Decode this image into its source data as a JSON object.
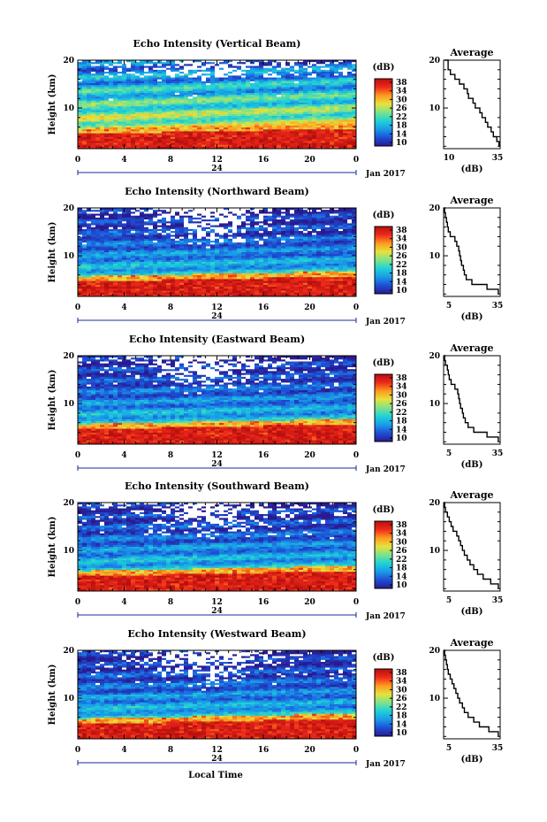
{
  "chart_data": {
    "type": "heatmap",
    "x_ticks": [
      "0",
      "4",
      "8",
      "12",
      "16",
      "20",
      "0"
    ],
    "date_tick": "24",
    "date_label": "Jan 2017",
    "xlabel": "Local Time",
    "ylabel": "Height (km)",
    "y_ticks": [
      "20",
      "10"
    ],
    "ylim_km": [
      1.5,
      20
    ],
    "colorbar": {
      "unit": "(dB)",
      "ticks": [
        "38",
        "34",
        "30",
        "26",
        "22",
        "18",
        "14",
        "10"
      ],
      "range_db": [
        10,
        38
      ],
      "colormap": [
        "#2a1a8f",
        "#1d4fd6",
        "#1a9be8",
        "#1ed3d6",
        "#7fe28a",
        "#e6e23c",
        "#ff9a1f",
        "#ee2a1a",
        "#b80f0f"
      ]
    },
    "missing_color": "#ffffff",
    "panels": [
      {
        "title": "Echo Intensity (Vertical Beam)",
        "profile_title": "Average",
        "profile_xlabel": "(dB)",
        "profile_xticks": [
          "10",
          "35"
        ],
        "profile_xlim": [
          10,
          35
        ],
        "profile": {
          "height_km": [
            20,
            18,
            17,
            16,
            15,
            14,
            13,
            12,
            11,
            10,
            9,
            8,
            7,
            6,
            5,
            4,
            3,
            2
          ],
          "db": [
            10.5,
            12,
            13,
            15,
            17,
            19,
            20.5,
            21,
            23,
            24,
            26,
            27,
            28.5,
            29.5,
            31,
            32,
            33.5,
            34.5
          ]
        }
      },
      {
        "title": "Echo Intensity (Northward Beam)",
        "profile_title": "Average",
        "profile_xlabel": "(dB)",
        "profile_xticks": [
          "5",
          "35"
        ],
        "profile_xlim": [
          5,
          35
        ],
        "profile": {
          "height_km": [
            20,
            19,
            18,
            17,
            16,
            15,
            14,
            13,
            12,
            11,
            10,
            9,
            8,
            7,
            6,
            5,
            4,
            3,
            2
          ],
          "db": [
            6,
            5.5,
            6,
            6.5,
            7,
            7.5,
            8.5,
            11,
            12,
            13,
            13.5,
            14,
            14.5,
            15.5,
            16,
            17,
            20,
            28,
            34
          ]
        }
      },
      {
        "title": "Echo Intensity (Eastward Beam)",
        "profile_title": "Average",
        "profile_xlabel": "(dB)",
        "profile_xticks": [
          "5",
          "35"
        ],
        "profile_xlim": [
          5,
          35
        ],
        "profile": {
          "height_km": [
            20,
            19,
            18,
            17,
            16,
            15,
            14,
            13,
            12,
            11,
            10,
            9,
            8,
            7,
            6,
            5,
            4,
            3,
            2
          ],
          "db": [
            6,
            5.5,
            6,
            7,
            7.5,
            8,
            9,
            11,
            12.5,
            13,
            13.5,
            14,
            15,
            15.5,
            16.5,
            18,
            21,
            28,
            34
          ]
        }
      },
      {
        "title": "Echo Intensity (Southward Beam)",
        "profile_title": "Average",
        "profile_xlabel": "(dB)",
        "profile_xticks": [
          "5",
          "35"
        ],
        "profile_xlim": [
          5,
          35
        ],
        "profile": {
          "height_km": [
            20,
            19,
            18,
            17,
            16,
            15,
            14,
            13,
            12,
            11,
            10,
            9,
            8,
            7,
            6,
            5,
            4,
            3,
            2
          ],
          "db": [
            6,
            5.5,
            6,
            7,
            8,
            9,
            10,
            12,
            13,
            14,
            15,
            16,
            17.5,
            19,
            21,
            23,
            26,
            30,
            34
          ]
        }
      },
      {
        "title": "Echo Intensity (Westward Beam)",
        "profile_title": "Average",
        "profile_xlabel": "(dB)",
        "profile_xticks": [
          "5",
          "35"
        ],
        "profile_xlim": [
          5,
          35
        ],
        "profile": {
          "height_km": [
            20,
            19,
            18,
            17,
            16,
            15,
            14,
            13,
            12,
            11,
            10,
            9,
            8,
            7,
            6,
            5,
            4,
            3,
            2
          ],
          "db": [
            6,
            5.5,
            6,
            6.5,
            7,
            7.5,
            8.5,
            9.5,
            10.5,
            11.5,
            12.5,
            13.5,
            15,
            16,
            18,
            21,
            24,
            29,
            34
          ]
        }
      }
    ]
  }
}
